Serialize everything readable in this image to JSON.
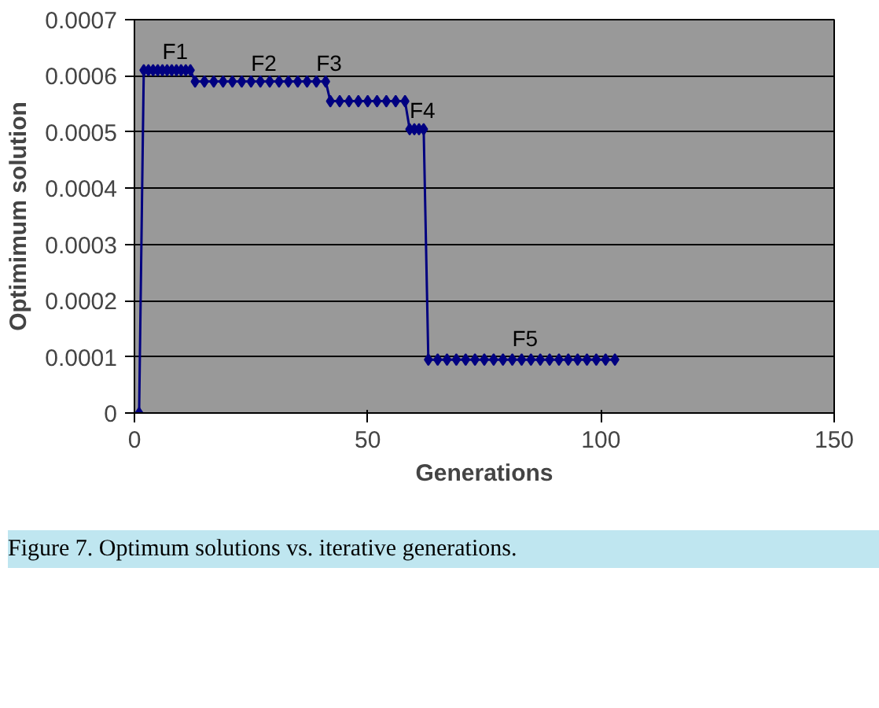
{
  "chart_data": {
    "type": "line",
    "xlabel": "Generations",
    "ylabel": "Optimimum solution",
    "x": [
      1,
      2,
      3,
      4,
      5,
      6,
      7,
      8,
      9,
      10,
      11,
      12,
      13,
      15,
      17,
      19,
      21,
      23,
      25,
      27,
      29,
      31,
      33,
      35,
      37,
      39,
      41,
      42,
      44,
      46,
      48,
      50,
      52,
      54,
      56,
      58,
      59,
      60,
      61,
      62,
      63,
      65,
      67,
      69,
      71,
      73,
      75,
      77,
      79,
      81,
      83,
      85,
      87,
      89,
      91,
      93,
      95,
      97,
      99,
      101,
      103
    ],
    "series": [
      {
        "color": "#000080",
        "values": [
          0,
          0.00061,
          0.00061,
          0.00061,
          0.00061,
          0.00061,
          0.00061,
          0.00061,
          0.00061,
          0.00061,
          0.00061,
          0.00061,
          0.00059,
          0.00059,
          0.00059,
          0.00059,
          0.00059,
          0.00059,
          0.00059,
          0.00059,
          0.00059,
          0.00059,
          0.00059,
          0.00059,
          0.00059,
          0.00059,
          0.00059,
          0.000555,
          0.000555,
          0.000555,
          0.000555,
          0.000555,
          0.000555,
          0.000555,
          0.000555,
          0.000555,
          0.000505,
          0.000505,
          0.000505,
          0.000505,
          9.5e-05,
          9.5e-05,
          9.5e-05,
          9.5e-05,
          9.5e-05,
          9.5e-05,
          9.5e-05,
          9.5e-05,
          9.5e-05,
          9.5e-05,
          9.5e-05,
          9.5e-05,
          9.5e-05,
          9.5e-05,
          9.5e-05,
          9.5e-05,
          9.5e-05,
          9.5e-05,
          9.5e-05,
          9.5e-05,
          9.5e-05
        ]
      }
    ],
    "marker": "diamond",
    "line_style": "solid",
    "xlim": [
      0,
      150
    ],
    "xticks": [
      0,
      50,
      100,
      150
    ],
    "ylim": [
      0,
      0.0007
    ],
    "yticks": [
      0,
      0.0001,
      0.0002,
      0.0003,
      0.0004,
      0.0005,
      0.0006,
      0.0007
    ],
    "grid": "y",
    "annotations": [
      {
        "text": "F1",
        "x": 8,
        "y": 0.00061
      },
      {
        "text": "F2",
        "x": 27,
        "y": 0.00059
      },
      {
        "text": "F3",
        "x": 41,
        "y": 0.00059
      },
      {
        "text": "F4",
        "x": 61,
        "y": 0.000505
      },
      {
        "text": "F5",
        "x": 83,
        "y": 0.0001
      },
      "Figure 7. Optimum solutions vs. iterative generations."
    ]
  }
}
